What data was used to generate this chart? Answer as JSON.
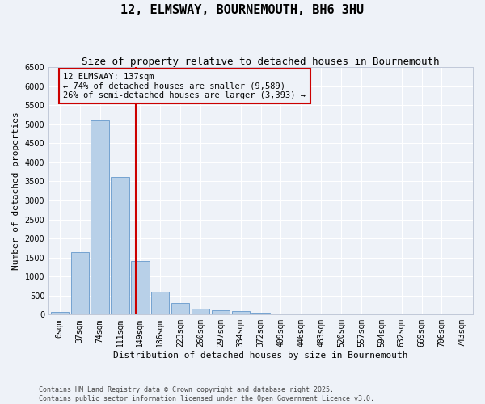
{
  "title": "12, ELMSWAY, BOURNEMOUTH, BH6 3HU",
  "subtitle": "Size of property relative to detached houses in Bournemouth",
  "xlabel": "Distribution of detached houses by size in Bournemouth",
  "ylabel": "Number of detached properties",
  "footer_line1": "Contains HM Land Registry data © Crown copyright and database right 2025.",
  "footer_line2": "Contains public sector information licensed under the Open Government Licence v3.0.",
  "bar_labels": [
    "0sqm",
    "37sqm",
    "74sqm",
    "111sqm",
    "149sqm",
    "186sqm",
    "223sqm",
    "260sqm",
    "297sqm",
    "334sqm",
    "372sqm",
    "409sqm",
    "446sqm",
    "483sqm",
    "520sqm",
    "557sqm",
    "594sqm",
    "632sqm",
    "669sqm",
    "706sqm",
    "743sqm"
  ],
  "bar_values": [
    75,
    1650,
    5100,
    3620,
    1410,
    610,
    310,
    155,
    115,
    85,
    50,
    30,
    15,
    5,
    0,
    0,
    0,
    0,
    0,
    0,
    0
  ],
  "bar_color": "#b8d0e8",
  "bar_edge_color": "#6699cc",
  "vline_x": 3.78,
  "vline_color": "#cc0000",
  "annotation_text": "12 ELMSWAY: 137sqm\n← 74% of detached houses are smaller (9,589)\n26% of semi-detached houses are larger (3,393) →",
  "annotation_box_color": "#cc0000",
  "annotation_box_facecolor": "#eef2f8",
  "ylim": [
    0,
    6500
  ],
  "yticks": [
    0,
    500,
    1000,
    1500,
    2000,
    2500,
    3000,
    3500,
    4000,
    4500,
    5000,
    5500,
    6000,
    6500
  ],
  "bg_color": "#eef2f8",
  "grid_color": "#ffffff",
  "title_fontsize": 11,
  "subtitle_fontsize": 9,
  "axis_fontsize": 8,
  "tick_fontsize": 7,
  "annotation_fontsize": 7.5
}
